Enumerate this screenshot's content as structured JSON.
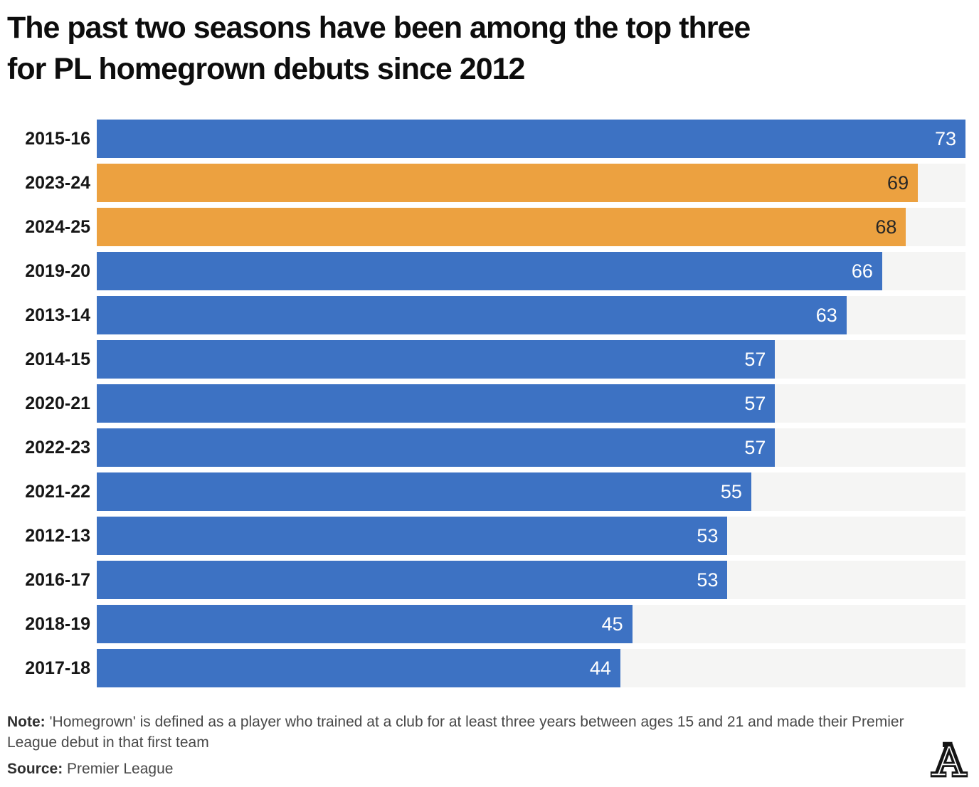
{
  "title": {
    "line1": "The past two seasons have been among the top three",
    "line2": "for PL homegrown debuts since 2012"
  },
  "colors": {
    "bar_default": "#3d72c3",
    "bar_highlight": "#eca140",
    "track": "#f5f5f4",
    "value_on_default": "#ffffff",
    "value_on_highlight": "#262626"
  },
  "chart_data": {
    "type": "bar",
    "orientation": "horizontal",
    "title": "The past two seasons have been among the top three for PL homegrown debuts since 2012",
    "categories": [
      "2015-16",
      "2023-24",
      "2024-25",
      "2019-20",
      "2013-14",
      "2014-15",
      "2020-21",
      "2022-23",
      "2021-22",
      "2012-13",
      "2016-17",
      "2018-19",
      "2017-18"
    ],
    "values": [
      73,
      69,
      68,
      66,
      63,
      57,
      57,
      57,
      55,
      53,
      53,
      45,
      44
    ],
    "highlighted_categories": [
      "2023-24",
      "2024-25"
    ],
    "xlim": [
      0,
      73
    ],
    "value_labels": "inside-end",
    "grid": false,
    "legend": false
  },
  "footer": {
    "note_label": "Note:",
    "note_text": "'Homegrown' is defined as a player who trained at a club for at least three years between ages 15 and 21 and made their Premier League debut in that first team",
    "source_label": "Source:",
    "source_text": "Premier League",
    "logo": "the-athletic-a-logo"
  }
}
